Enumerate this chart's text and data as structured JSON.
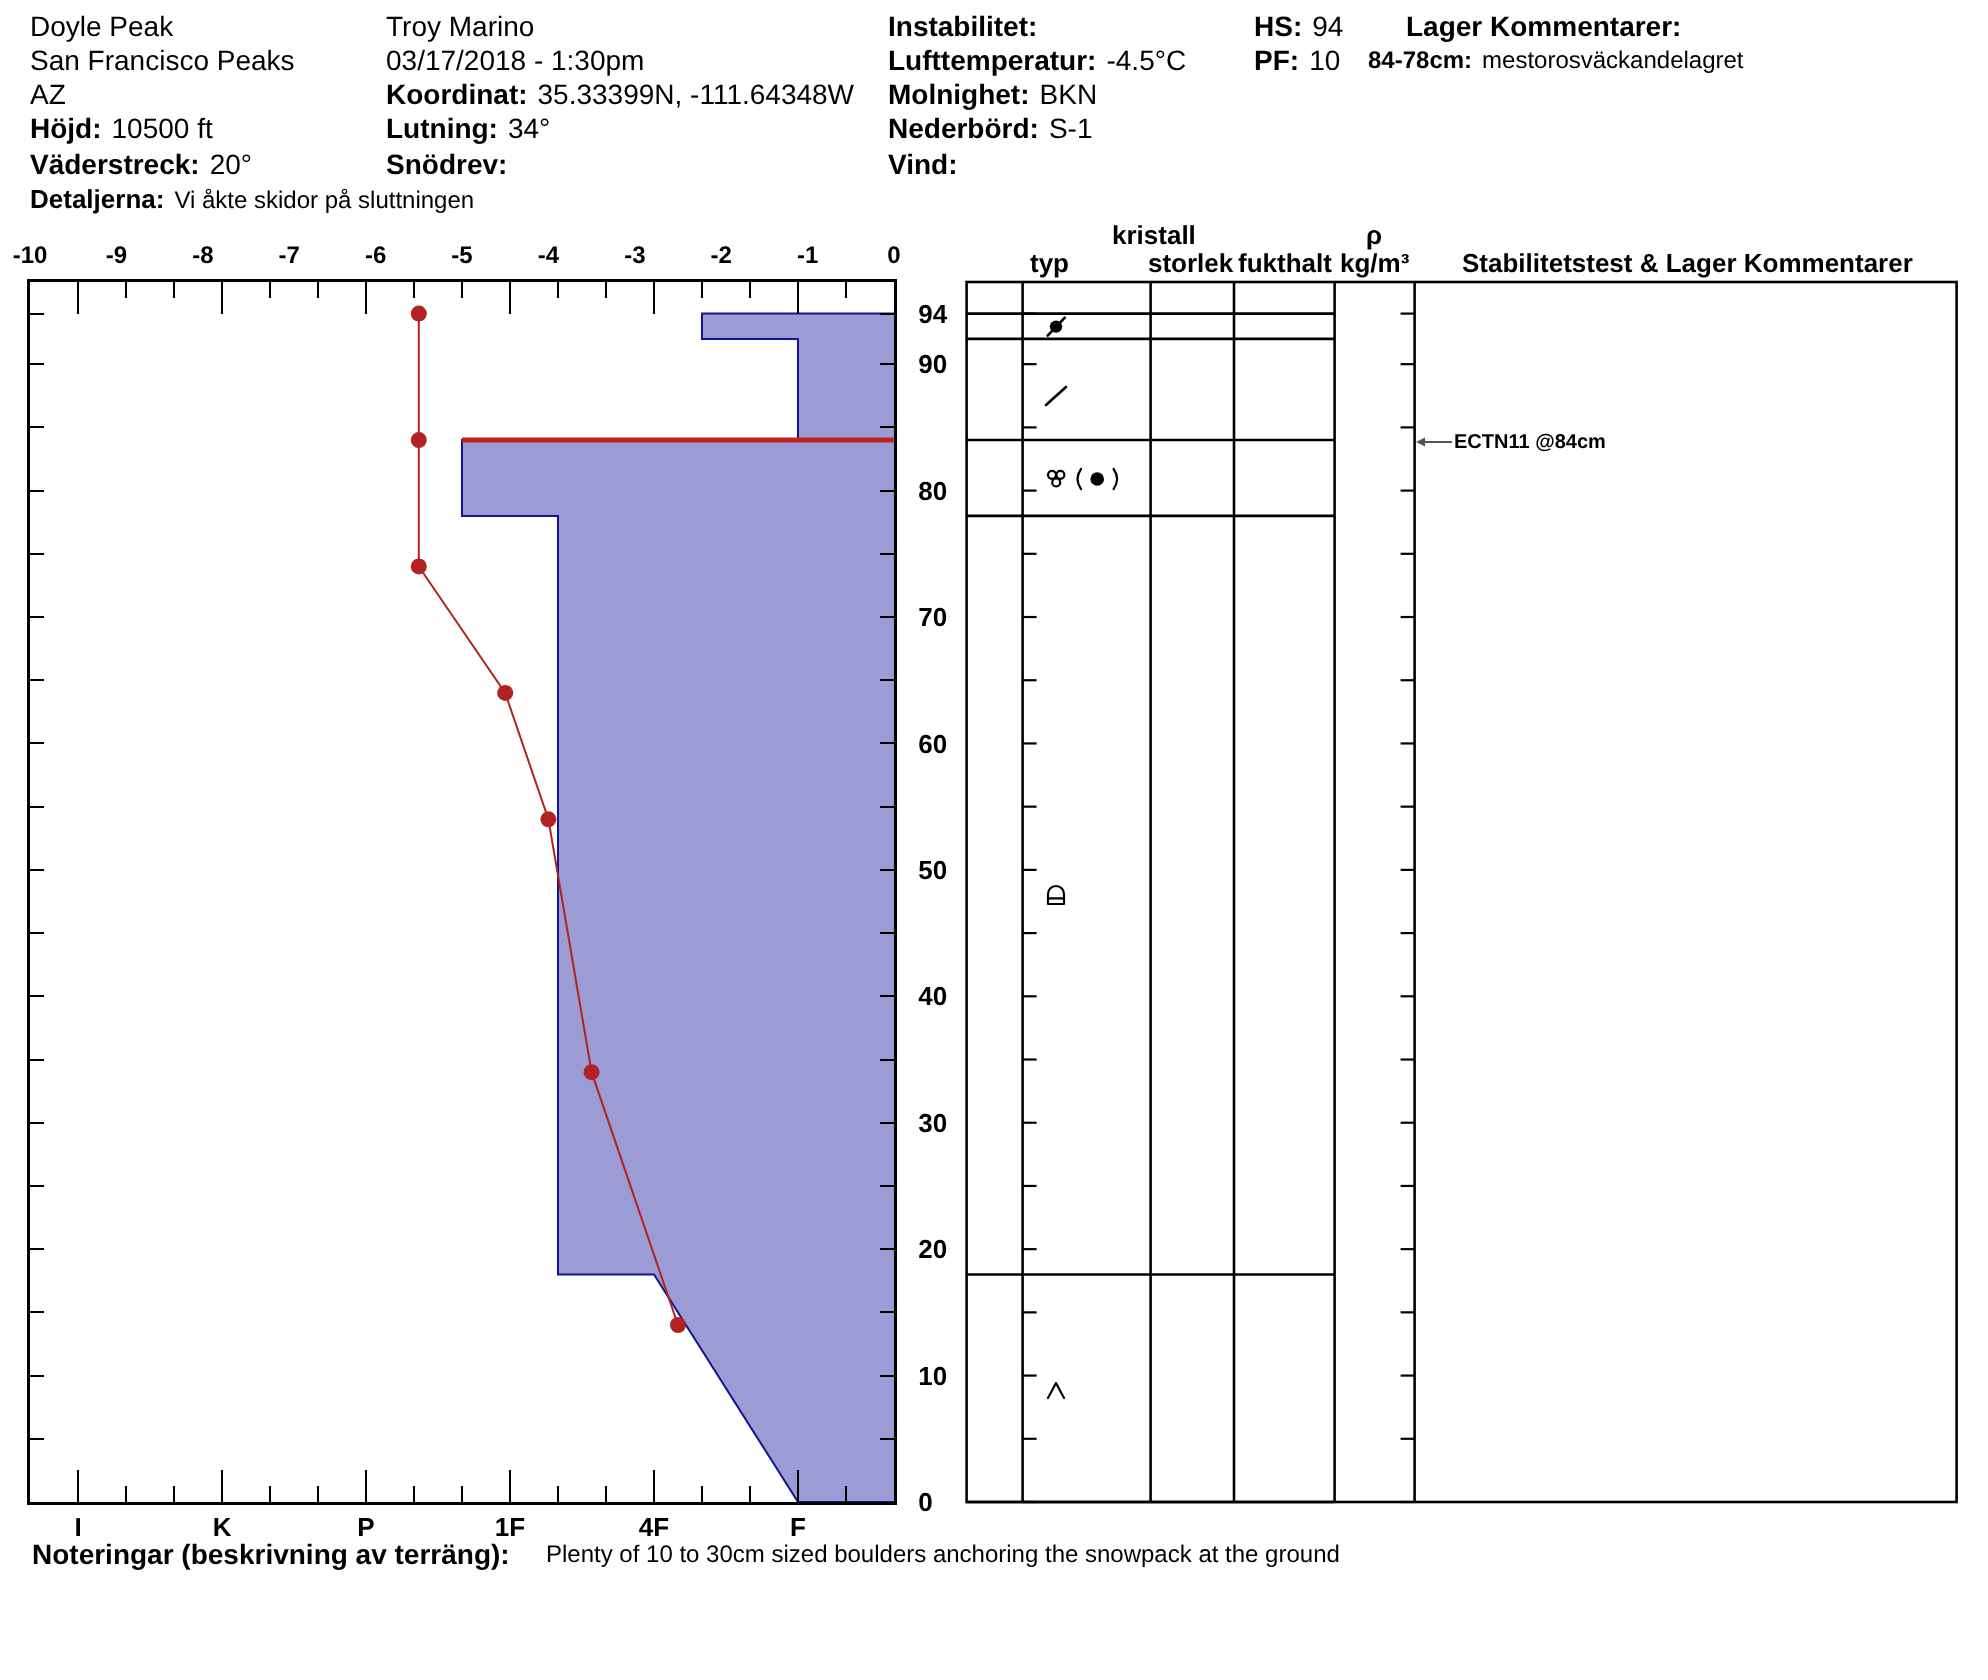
{
  "chart_data": [
    {
      "type": "other",
      "annotations": [
        "Doyle Peak",
        "San Francisco Peaks",
        "AZ",
        "Höjd:",
        "10500 ft",
        "Väderstreck:",
        "20°",
        "Detaljerna:",
        "Vi åkte skidor på sluttningen",
        "Troy Marino",
        "03/17/2018 - 1:30pm",
        "Koordinat:",
        "35.33399N, -111.64348W",
        "Lutning:",
        "34°",
        "Snödrev:",
        "Instabilitet:",
        "Lufttemperatur:",
        "-4.5°C",
        "Molnighet:",
        "BKN",
        "Nederbörd:",
        "S-1",
        "Vind:",
        "HS:",
        "94",
        "PF:",
        "10",
        "Lager Kommentarer:",
        "84-78cm:",
        "mestorosväckandelagret"
      ]
    },
    {
      "type": "area",
      "xlim": [
        -9,
        9
      ],
      "xticks": [
        {
          "value": -8,
          "label": "I"
        },
        {
          "value": -7,
          "label": null
        },
        {
          "value": -6,
          "label": null
        },
        {
          "value": -5,
          "label": "K"
        },
        {
          "value": -4,
          "label": null
        },
        {
          "value": -3,
          "label": null
        },
        {
          "value": -2,
          "label": "P"
        },
        {
          "value": -1,
          "label": null
        },
        {
          "value": 0,
          "label": null
        },
        {
          "value": 1,
          "label": "1F"
        },
        {
          "value": 2,
          "label": null
        },
        {
          "value": 3,
          "label": null
        },
        {
          "value": 4,
          "label": "4F"
        },
        {
          "value": 5,
          "label": null
        },
        {
          "value": 6,
          "label": null
        },
        {
          "value": 7,
          "label": "F"
        },
        {
          "value": 8,
          "label": null
        }
      ],
      "x2lim": [
        -10,
        0
      ],
      "x2ticks": [
        -10,
        -9,
        -8,
        -7,
        -6,
        -5,
        -4,
        -3,
        -2,
        -1,
        0
      ],
      "ylim": [
        0,
        96.5
      ],
      "yticks": [
        0,
        {
          "value": 5,
          "label": null
        },
        10,
        {
          "value": 15,
          "label": null
        },
        20,
        {
          "value": 25,
          "label": null
        },
        30,
        {
          "value": 35,
          "label": null
        },
        40,
        {
          "value": 45,
          "label": null
        },
        50,
        {
          "value": 55,
          "label": null
        },
        60,
        {
          "value": 65,
          "label": null
        },
        70,
        {
          "value": 75,
          "label": null
        },
        80,
        {
          "value": 85,
          "label": null
        },
        90,
        94
      ],
      "series": [
        {
          "type": "area",
          "color": "#9b9bd5",
          "x": [
            9,
            5,
            5,
            7,
            7,
            0,
            0,
            2,
            2,
            4,
            7,
            9
          ],
          "values": [
            94,
            94,
            92,
            92,
            84,
            84,
            78,
            78,
            18,
            18,
            0,
            0
          ]
        },
        {
          "type": "line",
          "axis": "x2",
          "color": "#b22222",
          "marker": "circle",
          "x": [
            -5.5,
            -5.5,
            -5.5,
            -4.5,
            -4,
            -3.5,
            -2.5
          ],
          "values": [
            94,
            84,
            74,
            64,
            54,
            34,
            14
          ]
        }
      ],
      "ref_lines": [
        {
          "axis": "y",
          "value": 84,
          "color": "#c0201e"
        }
      ],
      "annotations": [
        "typ",
        "kristall",
        "storlek",
        "fukthalt",
        "ρ",
        "kg/m³",
        "Stabilitetstest & Lager Kommentarer",
        "ECTN11 @84cm",
        "Noteringar (beskrivning av terräng):",
        "Plenty of 10 to 30cm sized boulders anchoring the snowpack at the ground"
      ]
    }
  ]
}
